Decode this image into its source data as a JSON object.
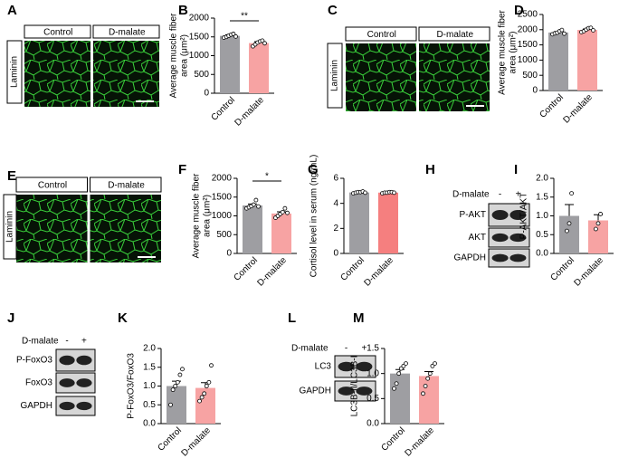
{
  "panel_labels": [
    "A",
    "B",
    "C",
    "D",
    "E",
    "F",
    "G",
    "H",
    "I",
    "J",
    "K",
    "L",
    "M"
  ],
  "images": [
    {
      "stain": "Laminin",
      "groups": [
        "Control",
        "D-malate"
      ]
    },
    {
      "stain": "Laminin",
      "groups": [
        "Control",
        "D-malate"
      ]
    },
    {
      "stain": "Laminin",
      "groups": [
        "Control",
        "D-malate"
      ]
    }
  ],
  "blots": [
    {
      "treatment": "D-malate",
      "lanes": [
        "-",
        "+"
      ],
      "bands": [
        "P-AKT",
        "AKT",
        "GAPDH"
      ]
    },
    {
      "treatment": "D-malate",
      "lanes": [
        "-",
        "+"
      ],
      "bands": [
        "P-FoxO3",
        "FoxO3",
        "GAPDH"
      ]
    },
    {
      "treatment": "D-malate",
      "lanes": [
        "-",
        "+"
      ],
      "bands": [
        "LC3",
        "GAPDH"
      ]
    }
  ],
  "chart_data": [
    {
      "type": "bar",
      "ylabel": [
        "Average muscle fiber",
        "area (μm²)"
      ],
      "categories": [
        "Control",
        "D-malate"
      ],
      "values": [
        1527,
        1335
      ],
      "errors": [
        30,
        40
      ],
      "points": [
        [
          1480,
          1500,
          1530,
          1560,
          1580,
          1510
        ],
        [
          1250,
          1300,
          1350,
          1380,
          1400,
          1330
        ]
      ],
      "colors": [
        "#9e9ea2",
        "#f7a3a3"
      ],
      "ylim": [
        0,
        2000
      ],
      "yticks": [
        0,
        500,
        1000,
        1500,
        2000
      ],
      "significance": "**"
    },
    {
      "type": "bar",
      "ylabel": [
        "Average muscle fiber",
        "area (μm²)"
      ],
      "categories": [
        "Control",
        "D-malate"
      ],
      "values": [
        1907,
        1993
      ],
      "errors": [
        30,
        30
      ],
      "points": [
        [
          1850,
          1880,
          1900,
          1950,
          1990,
          1870
        ],
        [
          1920,
          1950,
          2000,
          2050,
          2060,
          1980
        ]
      ],
      "colors": [
        "#9e9ea2",
        "#f7a3a3"
      ],
      "ylim": [
        0,
        2500
      ],
      "yticks": [
        0,
        500,
        1000,
        1500,
        2000,
        2500
      ]
    },
    {
      "type": "bar",
      "ylabel": [
        "Average muscle fiber",
        "area (μm²)"
      ],
      "categories": [
        "Control",
        "D-malate"
      ],
      "values": [
        1277,
        1063
      ],
      "errors": [
        40,
        45
      ],
      "points": [
        [
          1200,
          1230,
          1260,
          1300,
          1420,
          1250
        ],
        [
          950,
          1000,
          1050,
          1100,
          1200,
          1080
        ]
      ],
      "colors": [
        "#9e9ea2",
        "#f7a3a3"
      ],
      "ylim": [
        0,
        2000
      ],
      "yticks": [
        0,
        500,
        1000,
        1500,
        2000
      ],
      "significance": "*"
    },
    {
      "type": "bar",
      "ylabel": [
        "Cortisol level in serum (ng/mL)"
      ],
      "categories": [
        "Control",
        "D-malate"
      ],
      "values": [
        4.87,
        4.86
      ],
      "errors": [
        0.03,
        0.03
      ],
      "points": [
        [
          4.8,
          4.85,
          4.9,
          4.9,
          4.95,
          4.85
        ],
        [
          4.8,
          4.85,
          4.85,
          4.9,
          4.9,
          4.85
        ]
      ],
      "colors": [
        "#9e9ea2",
        "#f57f7f"
      ],
      "ylim": [
        0,
        6
      ],
      "yticks": [
        0,
        2,
        4,
        6
      ]
    },
    {
      "type": "bar",
      "ylabel": [
        "P-AKT/AKT"
      ],
      "categories": [
        "Control",
        "D-malate"
      ],
      "values": [
        1.0,
        0.88
      ],
      "errors": [
        0.3,
        0.15
      ],
      "points": [
        [
          0.6,
          0.8,
          1.6
        ],
        [
          0.65,
          0.8,
          1.05
        ]
      ],
      "colors": [
        "#9e9ea2",
        "#f7a3a3"
      ],
      "ylim": [
        0,
        2
      ],
      "yticks": [
        {
          "value": 0,
          "label": "0.0"
        },
        {
          "value": 0.5,
          "label": "0.5"
        },
        {
          "value": 1,
          "label": "1.0"
        },
        {
          "value": 1.5,
          "label": "1.5"
        },
        {
          "value": 2,
          "label": "2.0"
        }
      ]
    },
    {
      "type": "bar",
      "ylabel": [
        "P-FoxO3/FoxO3"
      ],
      "categories": [
        "Control",
        "D-malate"
      ],
      "values": [
        1.0,
        0.95
      ],
      "errors": [
        0.13,
        0.14
      ],
      "points": [
        [
          0.5,
          0.9,
          1.0,
          1.1,
          1.3,
          1.45
        ],
        [
          0.6,
          0.7,
          0.8,
          1.0,
          1.1,
          1.55
        ]
      ],
      "colors": [
        "#9e9ea2",
        "#f7a3a3"
      ],
      "ylim": [
        0,
        2
      ],
      "yticks": [
        {
          "value": 0,
          "label": "0.0"
        },
        {
          "value": 0.5,
          "label": "0.5"
        },
        {
          "value": 1,
          "label": "1.0"
        },
        {
          "value": 1.5,
          "label": "1.5"
        },
        {
          "value": 2,
          "label": "2.0"
        }
      ]
    },
    {
      "type": "bar",
      "ylabel": [
        "LC3B-II/LC3B-I"
      ],
      "categories": [
        "Control",
        "D-malate"
      ],
      "values": [
        1.0,
        0.95
      ],
      "errors": [
        0.08,
        0.09
      ],
      "points": [
        [
          0.7,
          0.8,
          1.0,
          1.1,
          1.15,
          1.2
        ],
        [
          0.6,
          0.75,
          0.9,
          1.0,
          1.15,
          1.2
        ]
      ],
      "colors": [
        "#9e9ea2",
        "#f7a3a3"
      ],
      "ylim": [
        0,
        1.5
      ],
      "yticks": [
        {
          "value": 0,
          "label": "0.0"
        },
        {
          "value": 0.5,
          "label": "0.5"
        },
        {
          "value": 1,
          "label": "1.0"
        },
        {
          "value": 1.5,
          "label": "1.5"
        }
      ]
    }
  ]
}
